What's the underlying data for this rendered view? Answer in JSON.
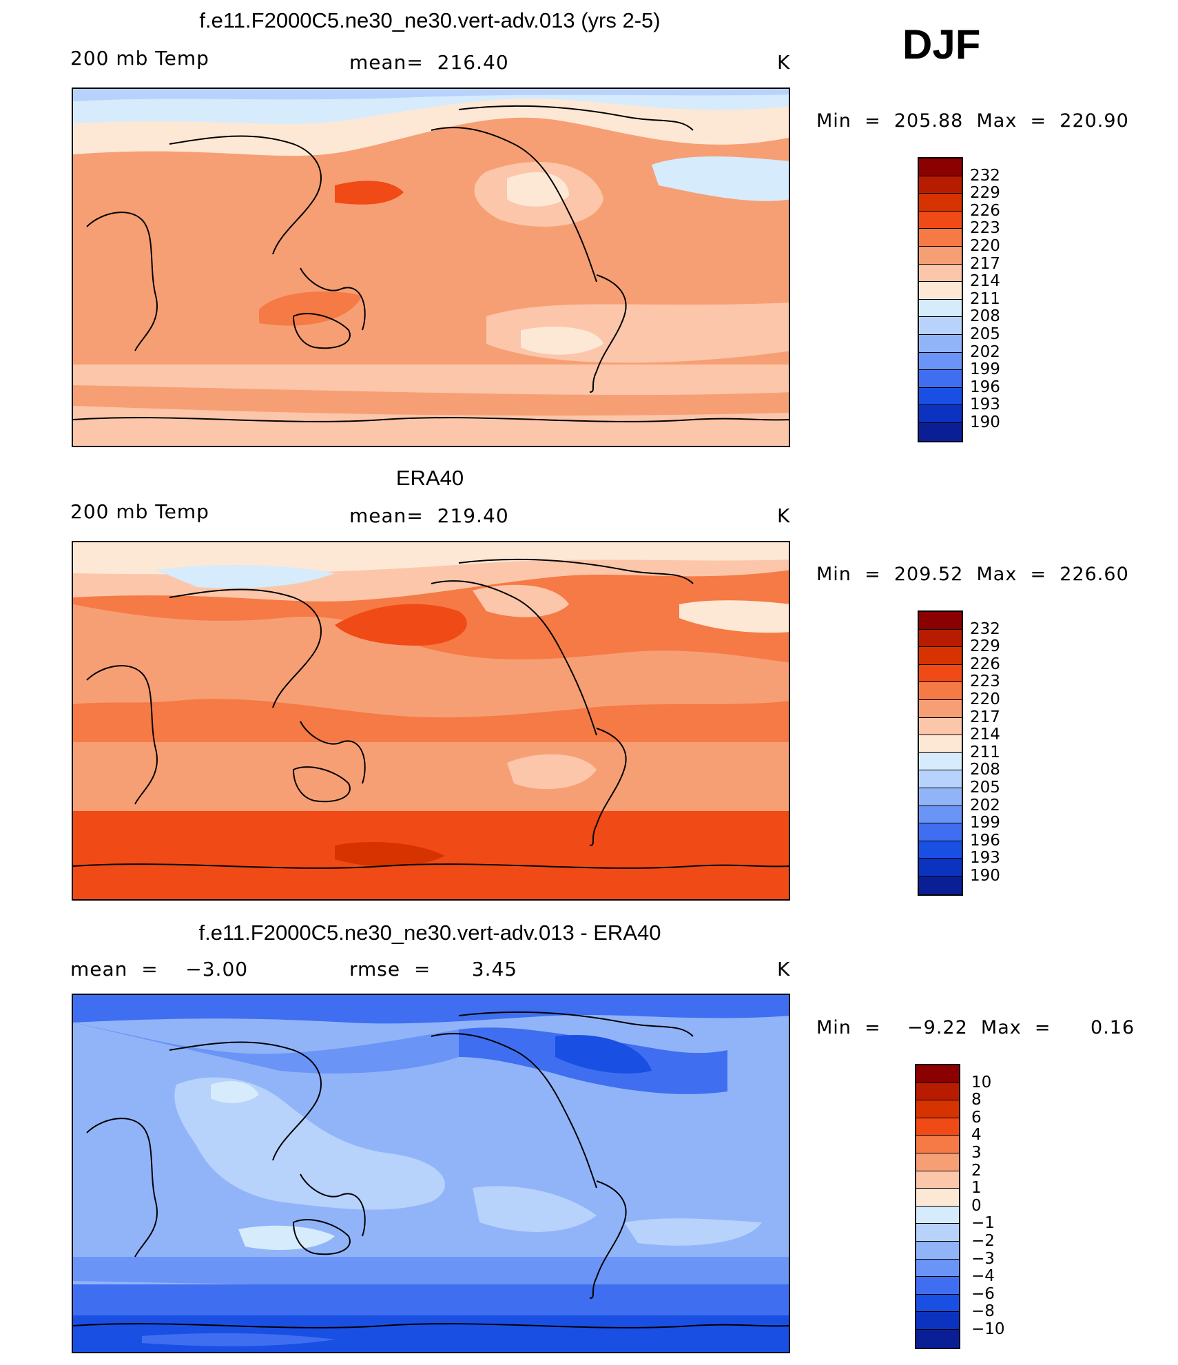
{
  "season": "DJF",
  "units": "K",
  "panels": [
    {
      "title": "f.e11.F2000C5.ne30_ne30.vert-adv.013 (yrs 2-5)",
      "left_label": "200 mb Temp",
      "center_label": "mean=  216.40",
      "right_label": "K",
      "minmax": "Min  =  205.88  Max  =  220.90",
      "map_name": "model-map",
      "palette": "model"
    },
    {
      "title": "ERA40",
      "left_label": "200 mb Temp",
      "center_label": "mean=  219.40",
      "right_label": "K",
      "minmax": "Min  =  209.52  Max  =  226.60",
      "map_name": "obs-map",
      "palette": "obs"
    },
    {
      "title": "f.e11.F2000C5.ne30_ne30.vert-adv.013 - ERA40",
      "left_label": "mean  =    −3.00",
      "center_label": "rmse  =      3.45",
      "right_label": "K",
      "minmax": "Min  =    −9.22  Max  =      0.16",
      "map_name": "diff-map",
      "palette": "diff"
    }
  ],
  "colorbars": [
    {
      "labels": [
        "232",
        "229",
        "226",
        "223",
        "220",
        "217",
        "214",
        "211",
        "208",
        "205",
        "202",
        "199",
        "196",
        "193",
        "190"
      ],
      "colors": [
        "#8b0000",
        "#b81c00",
        "#d63300",
        "#f04a16",
        "#f57a45",
        "#f79f74",
        "#fbc6aa",
        "#fde8d6",
        "#d6ebfb",
        "#b7d2fb",
        "#91b4f9",
        "#6a94f5",
        "#3f6ff0",
        "#1a4fe4",
        "#0c32c0",
        "#0a1f96"
      ]
    },
    {
      "labels": [
        "232",
        "229",
        "226",
        "223",
        "220",
        "217",
        "214",
        "211",
        "208",
        "205",
        "202",
        "199",
        "196",
        "193",
        "190"
      ],
      "colors": [
        "#8b0000",
        "#b81c00",
        "#d63300",
        "#f04a16",
        "#f57a45",
        "#f79f74",
        "#fbc6aa",
        "#fde8d6",
        "#d6ebfb",
        "#b7d2fb",
        "#91b4f9",
        "#6a94f5",
        "#3f6ff0",
        "#1a4fe4",
        "#0c32c0",
        "#0a1f96"
      ]
    },
    {
      "labels": [
        "10",
        "8",
        "6",
        "4",
        "3",
        "2",
        "1",
        "0",
        "−1",
        "−2",
        "−3",
        "−4",
        "−6",
        "−8",
        "−10"
      ],
      "colors": [
        "#8b0000",
        "#b81c00",
        "#d63300",
        "#f04a16",
        "#f57a45",
        "#f79f74",
        "#fbc6aa",
        "#fde8d6",
        "#d6ebfb",
        "#b7d2fb",
        "#91b4f9",
        "#6a94f5",
        "#3f6ff0",
        "#1a4fe4",
        "#0c32c0",
        "#0a1f96"
      ]
    }
  ]
}
